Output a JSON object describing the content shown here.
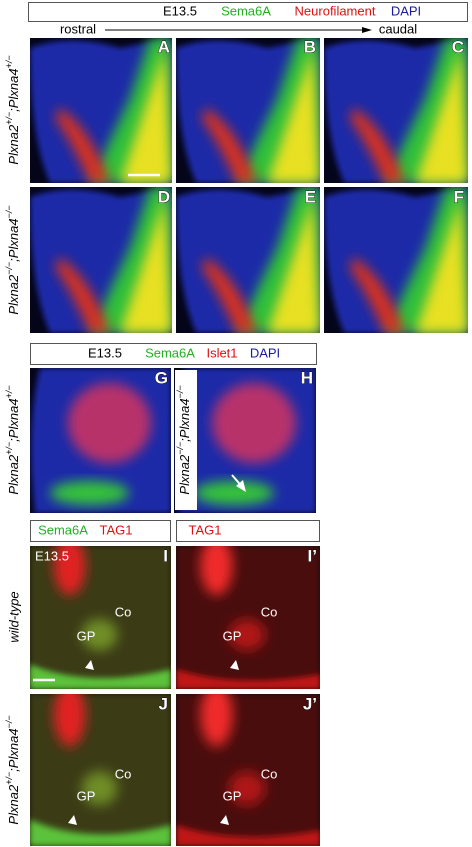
{
  "panel_set_1": {
    "header": {
      "stage": "E13.5",
      "stain_1": "Sema6A",
      "stain_2": "Neurofilament",
      "stain_3": "DAPI"
    },
    "axis": {
      "start": "rostral",
      "end": "caudal"
    },
    "rows": [
      {
        "genotype": {
          "gene_a": "Plxna2",
          "allele_a": "+/−",
          "separator": ";",
          "gene_b": "Plxna4",
          "allele_b": "+/−"
        },
        "panels": [
          "A",
          "B",
          "C"
        ]
      },
      {
        "genotype": {
          "gene_a": "Plxna2",
          "allele_a": "−/−",
          "separator": ";",
          "gene_b": "Plxna4",
          "allele_b": "−/−"
        },
        "panels": [
          "D",
          "E",
          "F"
        ]
      }
    ]
  },
  "panel_set_2": {
    "header": {
      "stage": "E13.5",
      "stain_1": "Sema6A",
      "stain_2": "Islet1",
      "stain_3": "DAPI"
    },
    "panels": [
      {
        "letter": "G",
        "genotype": {
          "gene_a": "Plxna2",
          "allele_a": "+/−",
          "separator": ";",
          "gene_b": "Plxna4",
          "allele_b": "+/−"
        }
      },
      {
        "letter": "H",
        "genotype": {
          "gene_a": "Plxna2",
          "allele_a": "−/−",
          "separator": ";",
          "gene_b": "Plxna4",
          "allele_b": "−/−"
        }
      }
    ]
  },
  "panel_set_3": {
    "column_headers": [
      {
        "stain_1": "Sema6A",
        "stain_2": "TAG1"
      },
      {
        "stain_1": "TAG1"
      }
    ],
    "rows": [
      {
        "genotype_label": "wild-type",
        "stage": "E13.5",
        "panels": [
          {
            "letter": "I",
            "regions": [
              "Co",
              "GP"
            ]
          },
          {
            "letter": "I’",
            "regions": [
              "Co",
              "GP"
            ]
          }
        ]
      },
      {
        "genotype": {
          "gene_a": "Plxna2",
          "allele_a": "+/−",
          "separator": ";",
          "gene_b": "Plxna4",
          "allele_b": "−/−"
        },
        "panels": [
          {
            "letter": "J",
            "regions": [
              "Co",
              "GP"
            ]
          },
          {
            "letter": "J’",
            "regions": [
              "Co",
              "GP"
            ]
          }
        ]
      }
    ]
  }
}
